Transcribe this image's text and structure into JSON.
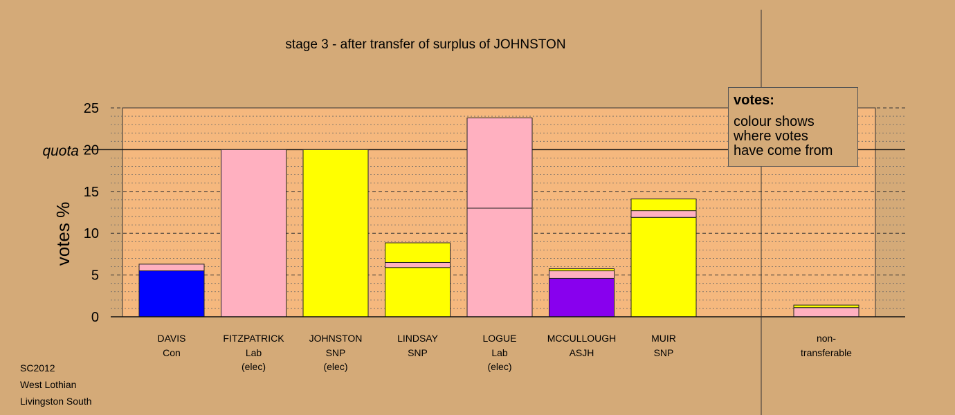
{
  "title": "stage 3 - after transfer of surplus of JOHNSTON",
  "legend": {
    "heading": "votes:",
    "lines": [
      "colour shows",
      "where votes",
      "have come from"
    ]
  },
  "footer": [
    "SC2012",
    "West Lothian",
    "Livingston South"
  ],
  "chart_data": {
    "type": "bar",
    "stacked": true,
    "title": "stage 3 - after transfer of surplus of JOHNSTON",
    "ylabel": "votes %",
    "ylim": [
      0,
      25
    ],
    "yticks": [
      0,
      5,
      10,
      15,
      20,
      25
    ],
    "quota": {
      "label": "quota",
      "value": 20
    },
    "grid": "dashed major, dotted minor",
    "candidates": [
      {
        "name": "DAVIS",
        "party": "Con",
        "status": "",
        "segments": [
          {
            "value": 5.5,
            "color": "#0000ff"
          },
          {
            "value": 0.8,
            "color": "#ffb0c0"
          }
        ]
      },
      {
        "name": "FITZPATRICK",
        "party": "Lab",
        "status": "(elec)",
        "segments": [
          {
            "value": 20.0,
            "color": "#ffb0c0"
          }
        ]
      },
      {
        "name": "JOHNSTON",
        "party": "SNP",
        "status": "(elec)",
        "segments": [
          {
            "value": 20.0,
            "color": "#ffff00"
          }
        ]
      },
      {
        "name": "LINDSAY",
        "party": "SNP",
        "status": "",
        "segments": [
          {
            "value": 5.9,
            "color": "#ffff00"
          },
          {
            "value": 0.6,
            "color": "#ffb0c0"
          },
          {
            "value": 2.35,
            "color": "#ffff00"
          }
        ]
      },
      {
        "name": "LOGUE",
        "party": "Lab",
        "status": "(elec)",
        "segments": [
          {
            "value": 13.0,
            "color": "#ffb0c0"
          },
          {
            "value": 10.8,
            "color": "#ffb0c0"
          }
        ]
      },
      {
        "name": "MCCULLOUGH",
        "party": "ASJH",
        "status": "",
        "segments": [
          {
            "value": 4.6,
            "color": "#8800ee"
          },
          {
            "value": 0.9,
            "color": "#ffb0c0"
          },
          {
            "value": 0.25,
            "color": "#ffff00"
          }
        ]
      },
      {
        "name": "MUIR",
        "party": "SNP",
        "status": "",
        "segments": [
          {
            "value": 11.9,
            "color": "#ffff00"
          },
          {
            "value": 0.8,
            "color": "#ffb0c0"
          },
          {
            "value": 1.4,
            "color": "#ffff00"
          }
        ]
      }
    ],
    "nontransferable": {
      "label1": "non-",
      "label2": "transferable",
      "segments": [
        {
          "value": 1.1,
          "color": "#ffb0c0"
        },
        {
          "value": 0.3,
          "color": "#ffff00"
        }
      ]
    }
  }
}
